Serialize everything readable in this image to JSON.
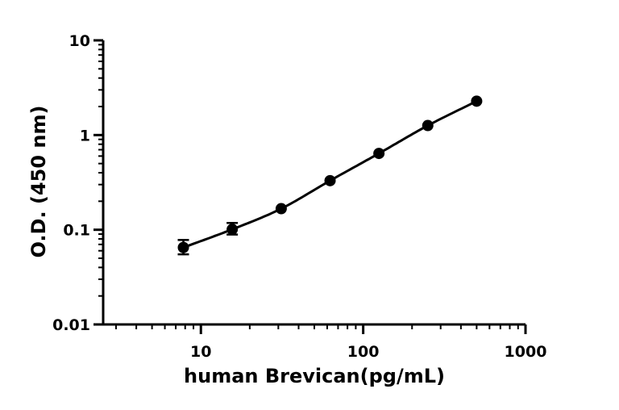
{
  "chart_data": {
    "type": "scatter",
    "xlabel": "human  Brevican(pg/mL)",
    "ylabel": "O.D. (450 nm)",
    "x_scale": "log",
    "y_scale": "log",
    "xlim": [
      2.5,
      1000
    ],
    "ylim": [
      0.01,
      10
    ],
    "x_ticks": [
      {
        "value": 10,
        "label": "10"
      },
      {
        "value": 100,
        "label": "100"
      },
      {
        "value": 1000,
        "label": "1000"
      }
    ],
    "y_ticks": [
      {
        "value": 0.01,
        "label": "0.01"
      },
      {
        "value": 0.1,
        "label": "0.1"
      },
      {
        "value": 1,
        "label": "1"
      },
      {
        "value": 10,
        "label": "10"
      }
    ],
    "grid": false,
    "series": [
      {
        "points": [
          {
            "x": 7.8,
            "y": 0.065,
            "err_low": 0.055,
            "err_high": 0.078
          },
          {
            "x": 15.6,
            "y": 0.101,
            "err_low": 0.089,
            "err_high": 0.118
          },
          {
            "x": 31.25,
            "y": 0.167
          },
          {
            "x": 62.5,
            "y": 0.33
          },
          {
            "x": 125,
            "y": 0.64
          },
          {
            "x": 250,
            "y": 1.26
          },
          {
            "x": 500,
            "y": 2.28
          }
        ],
        "fit_curve": true,
        "color": "#000000"
      }
    ]
  }
}
